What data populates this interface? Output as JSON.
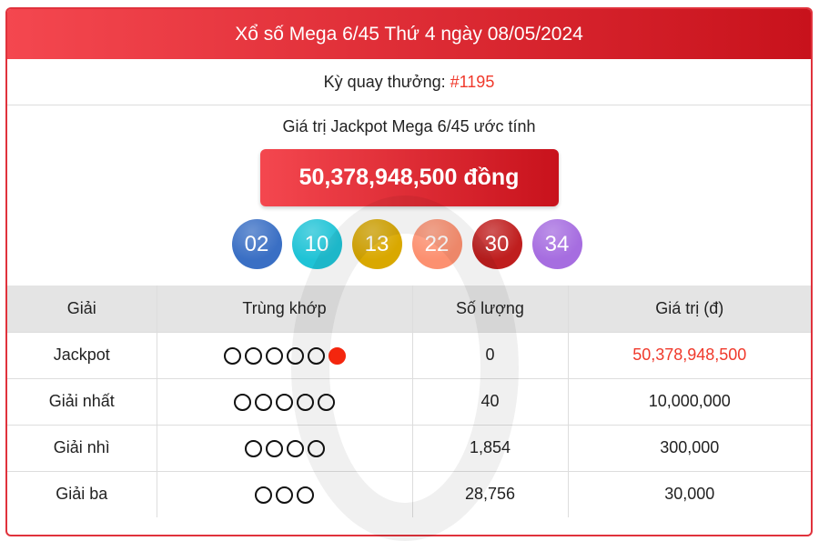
{
  "header": {
    "title": "Xổ số Mega 6/45 Thứ 4 ngày 08/05/2024"
  },
  "draw": {
    "label": "Kỳ quay thưởng:",
    "number": "#1195"
  },
  "jackpot": {
    "label": "Giá trị Jackpot Mega 6/45 ước tính",
    "value": "50,378,948,500 đồng"
  },
  "balls": [
    {
      "n": "02",
      "color": "#3a6fc4"
    },
    {
      "n": "10",
      "color": "#1fc3d6"
    },
    {
      "n": "13",
      "color": "#d9a800"
    },
    {
      "n": "22",
      "color": "#fc9070"
    },
    {
      "n": "30",
      "color": "#bf1e1e"
    },
    {
      "n": "34",
      "color": "#a66de0"
    }
  ],
  "table": {
    "headers": [
      "Giải",
      "Trùng khớp",
      "Số lượng",
      "Giá trị (đ)"
    ],
    "rows": [
      {
        "prize": "Jackpot",
        "match": 5,
        "bonus": 1,
        "count": "0",
        "value": "50,378,948,500",
        "highlight": true
      },
      {
        "prize": "Giải nhất",
        "match": 5,
        "bonus": 0,
        "count": "40",
        "value": "10,000,000"
      },
      {
        "prize": "Giải nhì",
        "match": 4,
        "bonus": 0,
        "count": "1,854",
        "value": "300,000"
      },
      {
        "prize": "Giải ba",
        "match": 3,
        "bonus": 0,
        "count": "28,756",
        "value": "30,000"
      }
    ]
  }
}
